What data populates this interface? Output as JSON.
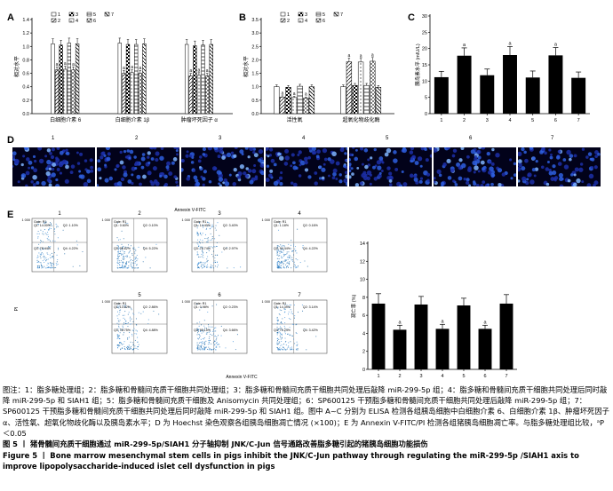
{
  "panels": {
    "A": {
      "letter": "A",
      "ylabel": "相对水平",
      "yticks": [
        "0.0",
        "0.2",
        "0.4",
        "0.6",
        "0.8",
        "1.0",
        "1.2",
        "1.4"
      ],
      "legend": [
        "1",
        "2",
        "3",
        "4",
        "5",
        "6",
        "7"
      ],
      "xlabels": [
        "白细胞介素 6",
        "白细胞介素 1β",
        "肿瘤坏死因子 α"
      ],
      "sig": "a"
    },
    "B": {
      "letter": "B",
      "ylabel": "相对水平",
      "yticks": [
        "0.0",
        "0.5",
        "1.0",
        "1.5",
        "2.0",
        "2.5",
        "3.0",
        "3.5"
      ],
      "legend": [
        "1",
        "2",
        "3",
        "4",
        "5",
        "6",
        "7"
      ],
      "xlabels": [
        "活性氧",
        "超氧化物歧化酶"
      ],
      "sig": "a"
    },
    "C": {
      "letter": "C",
      "ylabel": "胰岛素水平 (mIU/L)",
      "yticks": [
        "0",
        "5",
        "10",
        "15",
        "20",
        "25",
        "30"
      ],
      "xticks": [
        "1",
        "2",
        "3",
        "4",
        "5",
        "6",
        "7"
      ],
      "sig": "a"
    },
    "D": {
      "letter": "D",
      "labels": [
        "1",
        "2",
        "3",
        "4",
        "5",
        "6",
        "7"
      ]
    },
    "E": {
      "letter": "E",
      "flow_labels": [
        "1",
        "2",
        "3",
        "4",
        "5",
        "6",
        "7"
      ],
      "x_axis_label": "Annexin V-FITC",
      "y_axis_label": "PI",
      "gate_text": "Gate: R1",
      "quadrants": [
        {
          "q1": "Q1: 14.00%",
          "q2": "Q2: 1.10%",
          "q3": "Q3: 78.44%",
          "q4": "Q4: 4.22%"
        },
        {
          "q1": "Q1: 0.60%",
          "q2": "Q2: 0.10%",
          "q3": "Q3: 96.62%",
          "q4": "Q4: 5.22%"
        },
        {
          "q1": "Q1: 14.40%",
          "q2": "Q2: 3.40%",
          "q3": "Q3: 78.74%",
          "q4": "Q4: 2.97%"
        },
        {
          "q1": "Q1: 1.18%",
          "q2": "Q2: 0.16%",
          "q3": "Q3: 94.44%",
          "q4": "Q4: 4.22%"
        },
        {
          "q1": "Q1: 13.62%",
          "q2": "Q2: 2.86%",
          "q3": "Q3: 78.75%",
          "q4": "Q4: 4.88%"
        },
        {
          "q1": "Q1: 0.98%",
          "q2": "Q2: 0.23%",
          "q3": "Q3: 95.15%",
          "q4": "Q4: 3.66%"
        },
        {
          "q1": "Q1: 14.39%",
          "q2": "Q2: 3.14%",
          "q3": "Q3: 79.24%",
          "q4": "Q4: 3.42%"
        }
      ],
      "bar_ylabel": "凋亡率 (%)",
      "bar_yticks": [
        "0",
        "2",
        "4",
        "6",
        "8",
        "10",
        "12",
        "14"
      ],
      "bar_xticks": [
        "1",
        "2",
        "3",
        "4",
        "5",
        "6",
        "7"
      ],
      "sig": "a"
    }
  },
  "chart_data": [
    {
      "type": "bar",
      "panel": "A",
      "ylabel": "相对水平",
      "ylim": [
        0,
        1.4
      ],
      "categories": [
        "白细胞介素 6",
        "白细胞介素 1β",
        "肿瘤坏死因子 α"
      ],
      "series": [
        {
          "name": "1",
          "values": [
            1.04,
            1.05,
            1.03
          ]
        },
        {
          "name": "2",
          "values": [
            0.65,
            0.6,
            0.56
          ]
        },
        {
          "name": "3",
          "values": [
            1.02,
            1.03,
            1.01
          ]
        },
        {
          "name": "4",
          "values": [
            0.66,
            0.61,
            0.57
          ]
        },
        {
          "name": "5",
          "values": [
            1.05,
            1.03,
            1.02
          ]
        },
        {
          "name": "6",
          "values": [
            0.65,
            0.6,
            0.56
          ]
        },
        {
          "name": "7",
          "values": [
            1.04,
            1.04,
            1.03
          ]
        }
      ],
      "significant": [
        1,
        3,
        5
      ]
    },
    {
      "type": "bar",
      "panel": "B",
      "ylabel": "相对水平",
      "ylim": [
        0,
        3.5
      ],
      "categories": [
        "活性氧",
        "超氧化物歧化酶"
      ],
      "series": [
        {
          "name": "1",
          "values": [
            1.0,
            1.0
          ]
        },
        {
          "name": "2",
          "values": [
            0.62,
            1.93
          ]
        },
        {
          "name": "3",
          "values": [
            0.98,
            1.05
          ]
        },
        {
          "name": "4",
          "values": [
            0.6,
            1.92
          ]
        },
        {
          "name": "5",
          "values": [
            1.02,
            1.05
          ]
        },
        {
          "name": "6",
          "values": [
            0.58,
            1.95
          ]
        },
        {
          "name": "7",
          "values": [
            1.0,
            0.98
          ]
        }
      ],
      "significant": [
        1,
        3,
        5
      ]
    },
    {
      "type": "bar",
      "panel": "C",
      "ylabel": "胰岛素水平 (mIU/L)",
      "ylim": [
        0,
        30
      ],
      "categories": [
        "1",
        "2",
        "3",
        "4",
        "5",
        "6",
        "7"
      ],
      "values": [
        11.2,
        17.8,
        11.8,
        18.0,
        11.1,
        17.9,
        11.0
      ],
      "errors": [
        1.8,
        2.4,
        1.9,
        2.6,
        2.0,
        2.4,
        1.8
      ],
      "significant": [
        1,
        3,
        5
      ]
    },
    {
      "type": "bar",
      "panel": "E",
      "ylabel": "凋亡率 (%)",
      "ylim": [
        0,
        14
      ],
      "categories": [
        "1",
        "2",
        "3",
        "4",
        "5",
        "6",
        "7"
      ],
      "values": [
        7.3,
        4.4,
        7.2,
        4.5,
        7.1,
        4.5,
        7.3
      ],
      "errors": [
        1.1,
        0.5,
        0.9,
        0.5,
        0.8,
        0.4,
        1.0
      ],
      "significant": [
        1,
        3,
        5
      ]
    }
  ],
  "caption": {
    "zh": "图注：1：脂多糖处理组；2：脂多糖和骨髓间充质干细胞共同处理组；3：脂多糖和骨髓间充质干细胞共同处理后敲降 miR-299-5p 组；4：脂多糖和骨髓间充质干细胞共同处理后同时敲降 miR-299-5p 和 SIAH1 组；5：脂多糖和骨髓间充质干细胞及 Anisomycin 共同处理组；6：SP600125 干预脂多糖和骨髓间充质干细胞共同处理后敲降 miR-299-5p 组；7：SP600125 干预脂多糖和骨髓间充质干细胞共同处理后同时敲降 miR-299-5p 和 SIAH1 组。图中 A~C 分别为 ELISA 检测各组胰岛细胞中白细胞介素 6、白细胞介素 1β、肿瘤坏死因子 α、活性氧、超氧化物歧化酶以及胰岛素水平；D 为 Hoechst 染色观察各组胰岛细胞凋亡情况 (×100)；E 为 Annexin V-FITC/PI 检测各组猪胰岛细胞凋亡率。与脂多糖处理组比较，ᵃP＜0.05",
    "title_zh": "图 5 丨 猪骨髓间充质干细胞通过 miR-299-5p/SIAH1 分子轴抑制 JNK/C-Jun 信号通路改善脂多糖引起的猪胰岛细胞功能损伤",
    "title_en": "Figure 5 丨 Bone marrow mesenchymal stem cells in pigs inhibit the JNK/C-Jun pathway through regulating the miR-299-5p /SIAH1 axis to improve lipopolysaccharide-induced islet cell dysfunction in pigs"
  }
}
